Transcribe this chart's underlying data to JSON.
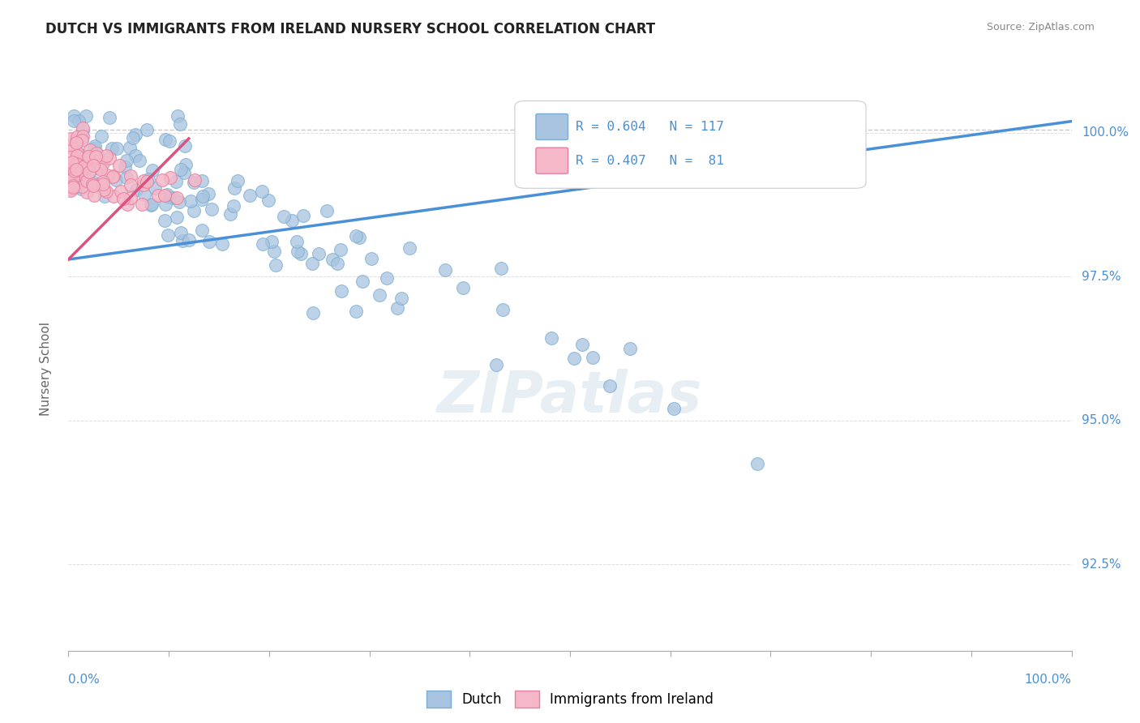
{
  "title": "DUTCH VS IMMIGRANTS FROM IRELAND NURSERY SCHOOL CORRELATION CHART",
  "source": "Source: ZipAtlas.com",
  "ylabel": "Nursery School",
  "ytick_values": [
    92.5,
    95.0,
    97.5,
    100.0
  ],
  "xmin": 0.0,
  "xmax": 100.0,
  "ymin": 91.0,
  "ymax": 100.8,
  "dutch_color": "#a8c4e0",
  "dutch_edge_color": "#7aadd4",
  "ireland_color": "#f4b8c8",
  "ireland_edge_color": "#e87fa0",
  "trend_dutch_color": "#4a90d9",
  "trend_ireland_color": "#e05080",
  "dashed_line_color": "#c8c8c8",
  "r_dutch": 0.604,
  "n_dutch": 117,
  "r_ireland": 0.407,
  "n_ireland": 81,
  "axis_label_color": "#4a90d9",
  "background_color": "#ffffff"
}
